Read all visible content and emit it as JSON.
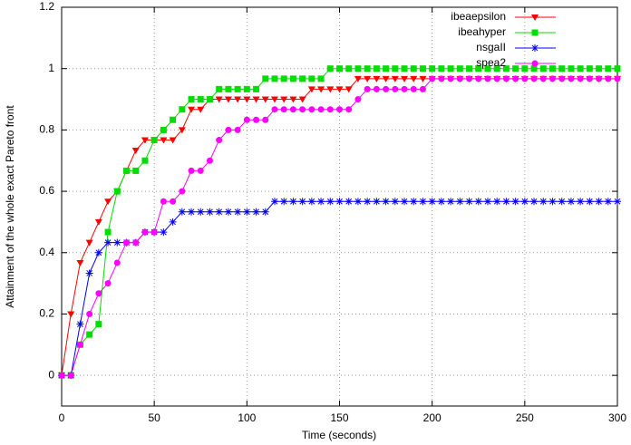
{
  "chart_data": {
    "type": "line",
    "xlabel": "Time (seconds)",
    "ylabel": "Attainment of the whole exact Pareto front",
    "x": [
      0,
      5,
      10,
      15,
      20,
      25,
      30,
      35,
      40,
      45,
      50,
      55,
      60,
      65,
      70,
      75,
      80,
      85,
      90,
      95,
      100,
      105,
      110,
      115,
      120,
      125,
      130,
      135,
      140,
      145,
      150,
      155,
      160,
      165,
      170,
      175,
      180,
      185,
      190,
      195,
      200,
      205,
      210,
      215,
      220,
      225,
      230,
      235,
      240,
      245,
      250,
      255,
      260,
      265,
      270,
      275,
      280,
      285,
      290,
      295,
      300
    ],
    "series": [
      {
        "name": "ibeaepsilon",
        "color": "#ff0000",
        "marker": "triangle-down",
        "values": [
          0,
          0.2,
          0.367,
          0.433,
          0.5,
          0.567,
          0.6,
          0.667,
          0.733,
          0.767,
          0.767,
          0.767,
          0.767,
          0.8,
          0.867,
          0.867,
          0.9,
          0.9,
          0.9,
          0.9,
          0.9,
          0.9,
          0.9,
          0.9,
          0.9,
          0.9,
          0.9,
          0.933,
          0.933,
          0.933,
          0.933,
          0.933,
          0.967,
          0.967,
          0.967,
          0.967,
          0.967,
          0.967,
          0.967,
          0.967,
          0.967,
          0.967,
          0.967,
          0.967,
          0.967,
          0.967,
          0.967,
          0.967,
          0.967,
          0.967,
          0.967,
          0.967,
          0.967,
          0.967,
          0.967,
          0.967,
          0.967,
          0.967,
          0.967,
          0.967,
          0.967
        ]
      },
      {
        "name": "ibeahyper",
        "color": "#00dd00",
        "marker": "square",
        "values": [
          0,
          0,
          0.1,
          0.133,
          0.167,
          0.467,
          0.6,
          0.667,
          0.667,
          0.7,
          0.767,
          0.8,
          0.833,
          0.867,
          0.9,
          0.9,
          0.9,
          0.933,
          0.933,
          0.933,
          0.933,
          0.933,
          0.967,
          0.967,
          0.967,
          0.967,
          0.967,
          0.967,
          0.967,
          1,
          1,
          1,
          1,
          1,
          1,
          1,
          1,
          1,
          1,
          1,
          1,
          1,
          1,
          1,
          1,
          1,
          1,
          1,
          1,
          1,
          1,
          1,
          1,
          1,
          1,
          1,
          1,
          1,
          1,
          1,
          1
        ]
      },
      {
        "name": "nsgaII",
        "color": "#0000ff",
        "marker": "star",
        "values": [
          0,
          0,
          0.167,
          0.333,
          0.4,
          0.433,
          0.433,
          0.433,
          0.433,
          0.467,
          0.467,
          0.467,
          0.5,
          0.533,
          0.533,
          0.533,
          0.533,
          0.533,
          0.533,
          0.533,
          0.533,
          0.533,
          0.533,
          0.567,
          0.567,
          0.567,
          0.567,
          0.567,
          0.567,
          0.567,
          0.567,
          0.567,
          0.567,
          0.567,
          0.567,
          0.567,
          0.567,
          0.567,
          0.567,
          0.567,
          0.567,
          0.567,
          0.567,
          0.567,
          0.567,
          0.567,
          0.567,
          0.567,
          0.567,
          0.567,
          0.567,
          0.567,
          0.567,
          0.567,
          0.567,
          0.567,
          0.567,
          0.567,
          0.567,
          0.567,
          0.567
        ]
      },
      {
        "name": "spea2",
        "color": "#ff00ff",
        "marker": "circle",
        "values": [
          0,
          0,
          0.1,
          0.2,
          0.267,
          0.3,
          0.367,
          0.433,
          0.433,
          0.467,
          0.467,
          0.567,
          0.567,
          0.6,
          0.667,
          0.667,
          0.7,
          0.767,
          0.8,
          0.8,
          0.833,
          0.833,
          0.833,
          0.867,
          0.867,
          0.867,
          0.867,
          0.867,
          0.867,
          0.867,
          0.867,
          0.867,
          0.9,
          0.933,
          0.933,
          0.933,
          0.933,
          0.933,
          0.933,
          0.933,
          0.967,
          0.967,
          0.967,
          0.967,
          0.967,
          0.967,
          0.967,
          0.967,
          0.967,
          0.967,
          0.967,
          0.967,
          0.967,
          0.967,
          0.967,
          0.967,
          0.967,
          0.967,
          0.967,
          0.967,
          0.967
        ]
      }
    ],
    "xlim": [
      0,
      300
    ],
    "xticks": [
      0,
      50,
      100,
      150,
      200,
      250,
      300
    ],
    "ylim": [
      -0.1,
      1.2
    ],
    "yticks": [
      0,
      0.2,
      0.4,
      0.6,
      0.8,
      1,
      1.2
    ],
    "grid": true,
    "legend": "top-right"
  }
}
